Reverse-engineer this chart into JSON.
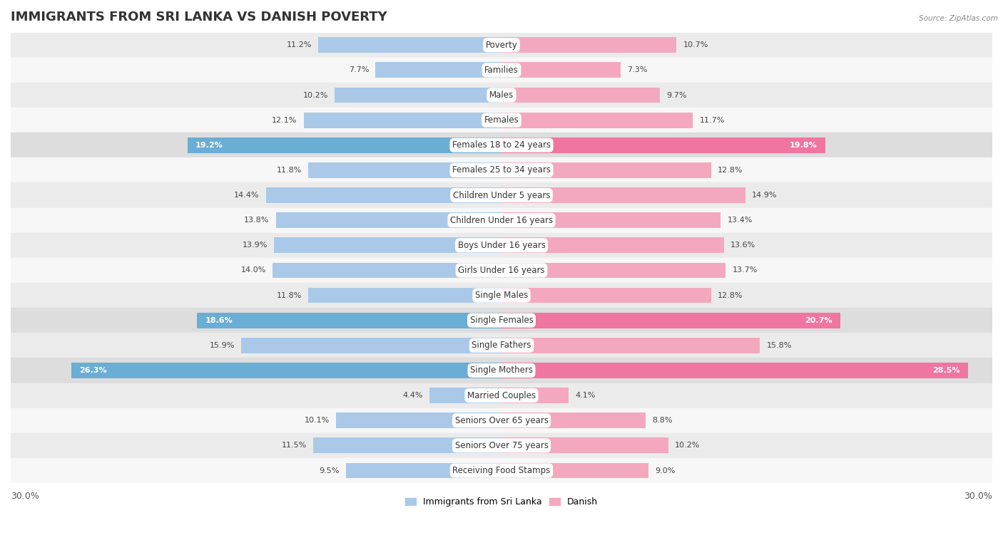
{
  "title": "IMMIGRANTS FROM SRI LANKA VS DANISH POVERTY",
  "source": "Source: ZipAtlas.com",
  "categories": [
    "Poverty",
    "Families",
    "Males",
    "Females",
    "Females 18 to 24 years",
    "Females 25 to 34 years",
    "Children Under 5 years",
    "Children Under 16 years",
    "Boys Under 16 years",
    "Girls Under 16 years",
    "Single Males",
    "Single Females",
    "Single Fathers",
    "Single Mothers",
    "Married Couples",
    "Seniors Over 65 years",
    "Seniors Over 75 years",
    "Receiving Food Stamps"
  ],
  "sri_lanka": [
    11.2,
    7.7,
    10.2,
    12.1,
    19.2,
    11.8,
    14.4,
    13.8,
    13.9,
    14.0,
    11.8,
    18.6,
    15.9,
    26.3,
    4.4,
    10.1,
    11.5,
    9.5
  ],
  "danish": [
    10.7,
    7.3,
    9.7,
    11.7,
    19.8,
    12.8,
    14.9,
    13.4,
    13.6,
    13.7,
    12.8,
    20.7,
    15.8,
    28.5,
    4.1,
    8.8,
    10.2,
    9.0
  ],
  "sri_lanka_color": "#aac9e8",
  "danish_color": "#f4a8c0",
  "sri_lanka_highlight_color": "#6aadd5",
  "danish_highlight_color": "#f075a0",
  "highlight_rows": [
    4,
    11,
    13
  ],
  "row_bg_odd": "#ebebeb",
  "row_bg_even": "#f7f7f7",
  "row_bg_highlight": "#dddddd",
  "bar_height": 0.62,
  "xlim": 30.0,
  "legend_label_left": "Immigrants from Sri Lanka",
  "legend_label_right": "Danish",
  "title_fontsize": 13,
  "label_fontsize": 8.5,
  "value_fontsize": 8.0,
  "axis_fontsize": 9
}
